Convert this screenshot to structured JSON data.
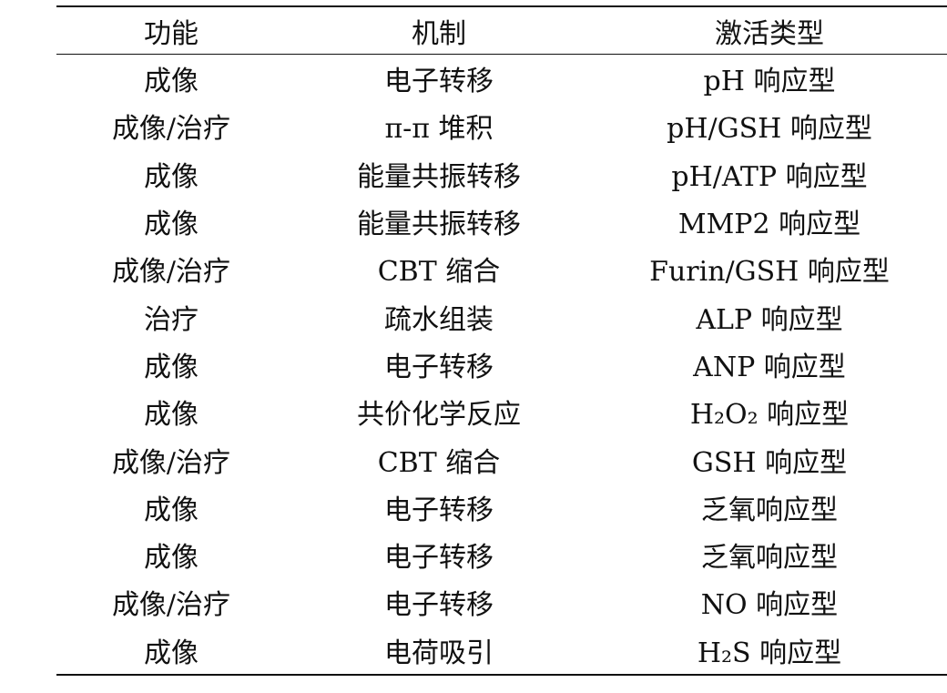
{
  "table": {
    "headers": [
      "功能",
      "机制",
      "激活类型"
    ],
    "rows": [
      [
        "成像",
        "电子转移",
        "pH 响应型"
      ],
      [
        "成像/治疗",
        "π-π 堆积",
        "pH/GSH 响应型"
      ],
      [
        "成像",
        "能量共振转移",
        "pH/ATP 响应型"
      ],
      [
        "成像",
        "能量共振转移",
        "MMP2 响应型"
      ],
      [
        "成像/治疗",
        "CBT 缩合",
        "Furin/GSH 响应型"
      ],
      [
        "治疗",
        "疏水组装",
        "ALP 响应型"
      ],
      [
        "成像",
        "电子转移",
        "ANP 响应型"
      ],
      [
        "成像",
        "共价化学反应",
        "H₂O₂ 响应型"
      ],
      [
        "成像/治疗",
        "CBT 缩合",
        "GSH 响应型"
      ],
      [
        "成像",
        "电子转移",
        "乏氧响应型"
      ],
      [
        "成像",
        "电子转移",
        "乏氧响应型"
      ],
      [
        "成像/治疗",
        "电子转移",
        "NO 响应型"
      ],
      [
        "成像",
        "电荷吸引",
        "H₂S 响应型"
      ]
    ]
  }
}
